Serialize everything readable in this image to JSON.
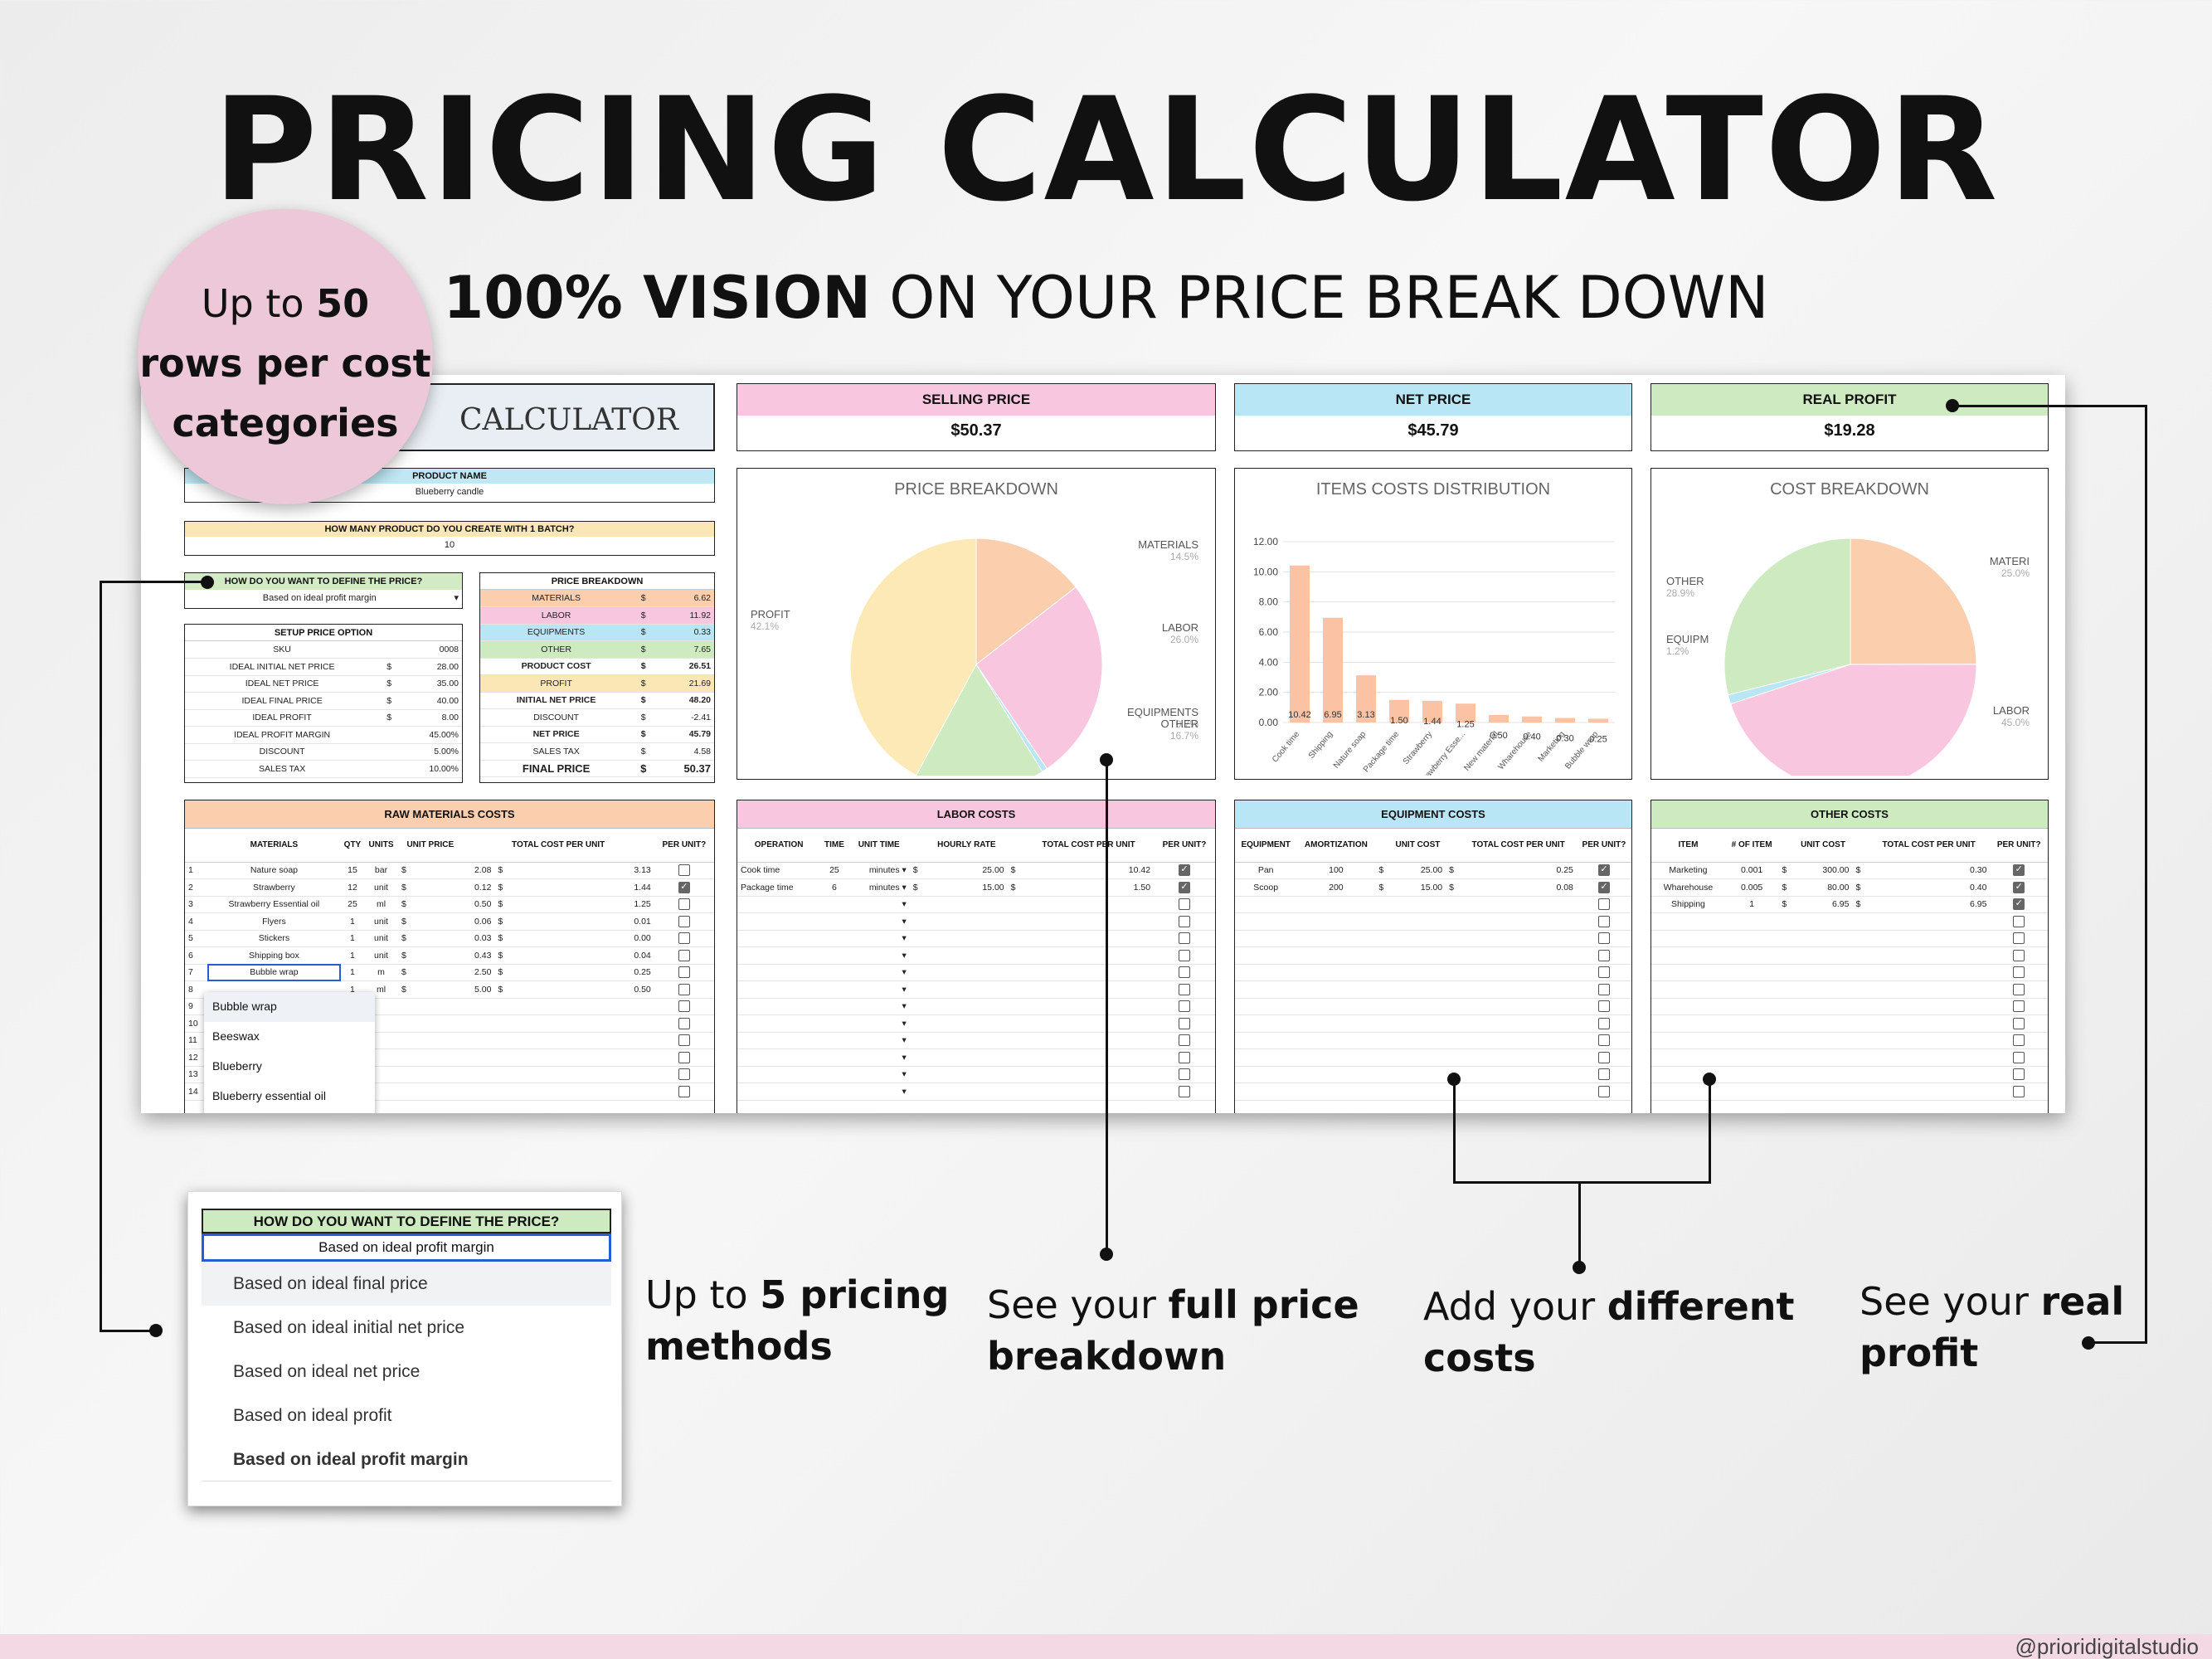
{
  "title": "PRICING CALCULATOR",
  "subtitle": {
    "bold": "100% VISION",
    "rest": "ON YOUR PRICE BREAK DOWN"
  },
  "badge": {
    "l1a": "Up to ",
    "l1b": "50",
    "l2": "rows per cost",
    "l3": "categories"
  },
  "sheet": {
    "calc_title": "CALCULATOR",
    "product_name_label": "PRODUCT NAME",
    "product_name": "Blueberry candle",
    "batch_label": "HOW MANY PRODUCT DO YOU CREATE WITH 1 BATCH?",
    "batch_value": "10",
    "define_label": "HOW DO YOU WANT TO DEFINE THE PRICE?",
    "define_value": "Based on ideal profit margin",
    "setup_label": "SETUP PRICE OPTION",
    "setup_rows": [
      [
        "SKU",
        "",
        "0008"
      ],
      [
        "IDEAL INITIAL NET PRICE",
        "$",
        "28.00"
      ],
      [
        "IDEAL NET PRICE",
        "$",
        "35.00"
      ],
      [
        "IDEAL FINAL PRICE",
        "$",
        "40.00"
      ],
      [
        "IDEAL PROFIT",
        "$",
        "8.00"
      ],
      [
        "IDEAL PROFIT MARGIN",
        "",
        "45.00%"
      ],
      [
        "DISCOUNT",
        "",
        "5.00%"
      ],
      [
        "SALES TAX",
        "",
        "10.00%"
      ]
    ],
    "breakdown_label": "PRICE BREAKDOWN",
    "breakdown_rows": [
      [
        "MATERIALS",
        "$",
        "6.62"
      ],
      [
        "LABOR",
        "$",
        "11.92"
      ],
      [
        "EQUIPMENTS",
        "$",
        "0.33"
      ],
      [
        "OTHER",
        "$",
        "7.65"
      ],
      [
        "PRODUCT COST",
        "$",
        "26.51"
      ],
      [
        "PROFIT",
        "$",
        "21.69"
      ],
      [
        "INITIAL NET PRICE",
        "$",
        "48.20"
      ],
      [
        "DISCOUNT",
        "$",
        "-2.41"
      ],
      [
        "NET PRICE",
        "$",
        "45.79"
      ],
      [
        "SALES TAX",
        "$",
        "4.58"
      ],
      [
        "FINAL PRICE",
        "$",
        "50.37"
      ]
    ],
    "kpis": [
      {
        "label": "SELLING PRICE",
        "value": "$50.37",
        "color": "#f9c6e0"
      },
      {
        "label": "NET PRICE",
        "value": "$45.79",
        "color": "#b9e6f4"
      },
      {
        "label": "REAL PROFIT",
        "value": "$19.28",
        "color": "#cdeac0"
      }
    ],
    "charts": {
      "pie1": {
        "title": "PRICE BREAKDOWN",
        "labels": [
          "MATERIALS",
          "LABOR",
          "EQUIPMENTS",
          "OTHER",
          "PROFIT"
        ],
        "pcts": [
          "14.5%",
          "26.0%",
          "0.7%",
          "16.7%",
          "42.1%"
        ]
      },
      "bar": {
        "title": "ITEMS COSTS DISTRIBUTION",
        "yticks": [
          "12.00",
          "10.00",
          "8.00",
          "6.00",
          "4.00",
          "2.00",
          "0.00"
        ],
        "labels": [
          "10.42",
          "6.95",
          "3.13",
          "1.50",
          "1.44",
          "1.25",
          "0.50",
          "0.40",
          "0.30",
          "0.25"
        ],
        "cats": [
          "Cook time",
          "Shipping",
          "Nature soap",
          "Package time",
          "Strawberry",
          "Strawberry Esse...",
          "New material",
          "Wharehouse",
          "Marketing",
          "Bubble wrap"
        ]
      },
      "pie2": {
        "title": "COST BREAKDOWN",
        "labels": [
          "MATERI",
          "LABOR",
          "EQUIPM",
          "OTHER"
        ],
        "pcts": [
          "25.0%",
          "45.0%",
          "1.2%",
          "28.9%"
        ]
      }
    },
    "raw": {
      "title": "RAW MATERIALS COSTS",
      "cols": [
        "MATERIALS",
        "QTY",
        "UNITS",
        "UNIT PRICE",
        "TOTAL COST PER UNIT",
        "PER UNIT?"
      ],
      "rows": [
        [
          "1",
          "Nature soap",
          "15",
          "bar",
          "$",
          "2.08",
          "$",
          "3.13"
        ],
        [
          "2",
          "Strawberry",
          "12",
          "unit",
          "$",
          "0.12",
          "$",
          "1.44"
        ],
        [
          "3",
          "Strawberry Essential oil",
          "25",
          "ml",
          "$",
          "0.50",
          "$",
          "1.25"
        ],
        [
          "4",
          "Flyers",
          "1",
          "unit",
          "$",
          "0.06",
          "$",
          "0.01"
        ],
        [
          "5",
          "Stickers",
          "1",
          "unit",
          "$",
          "0.03",
          "$",
          "0.00"
        ],
        [
          "6",
          "Shipping box",
          "1",
          "unit",
          "$",
          "0.43",
          "$",
          "0.04"
        ],
        [
          "7",
          "Bubble wrap",
          "1",
          "m",
          "$",
          "2.50",
          "$",
          "0.25"
        ],
        [
          "8",
          "",
          "1",
          "ml",
          "$",
          "5.00",
          "$",
          "0.50"
        ],
        [
          "9",
          "",
          "",
          "",
          "",
          "",
          "",
          ""
        ],
        [
          "10",
          "",
          "",
          "",
          "",
          "",
          "",
          ""
        ],
        [
          "11",
          "",
          "",
          "",
          "",
          "",
          "",
          ""
        ],
        [
          "12",
          "",
          "",
          "",
          "",
          "",
          "",
          ""
        ],
        [
          "13",
          "",
          "",
          "",
          "",
          "",
          "",
          ""
        ],
        [
          "14",
          "",
          "",
          "",
          "",
          "",
          "",
          ""
        ]
      ],
      "dropdown": [
        "Bubble wrap",
        "Beeswax",
        "Blueberry",
        "Blueberry essential oil"
      ]
    },
    "labor": {
      "title": "LABOR COSTS",
      "cols": [
        "OPERATION",
        "TIME",
        "UNIT TIME",
        "HOURLY RATE",
        "TOTAL COST PER UNIT",
        "PER UNIT?"
      ],
      "rows": [
        [
          "Cook time",
          "25",
          "minutes",
          "$",
          "25.00",
          "$",
          "10.42"
        ],
        [
          "Package time",
          "6",
          "minutes",
          "$",
          "15.00",
          "$",
          "1.50"
        ]
      ]
    },
    "equip": {
      "title": "EQUIPMENT COSTS",
      "cols": [
        "EQUIPMENT",
        "AMORTIZATION",
        "UNIT COST",
        "TOTAL COST PER UNIT",
        "PER UNIT?"
      ],
      "rows": [
        [
          "Pan",
          "100",
          "$",
          "25.00",
          "$",
          "0.25"
        ],
        [
          "Scoop",
          "200",
          "$",
          "15.00",
          "$",
          "0.08"
        ]
      ]
    },
    "other": {
      "title": "OTHER COSTS",
      "cols": [
        "ITEM",
        "# OF ITEM",
        "UNIT COST",
        "TOTAL COST PER UNIT",
        "PER UNIT?"
      ],
      "rows": [
        [
          "Marketing",
          "0.001",
          "$",
          "300.00",
          "$",
          "0.30"
        ],
        [
          "Wharehouse",
          "0.005",
          "$",
          "80.00",
          "$",
          "0.40"
        ],
        [
          "Shipping",
          "1",
          "$",
          "6.95",
          "$",
          "6.95"
        ]
      ]
    }
  },
  "popup": {
    "label": "HOW DO YOU WANT TO DEFINE THE PRICE?",
    "value": "Based on ideal profit margin",
    "options": [
      "Based on ideal final price",
      "Based on ideal initial net price",
      "Based on ideal net price",
      "Based on ideal profit",
      "Based on ideal profit margin"
    ]
  },
  "callouts": {
    "c1a": "Up to ",
    "c1b": "5 pricing",
    "c1c": "methods",
    "c2a": "See your ",
    "c2b": "full price",
    "c2c": "breakdown",
    "c3a": "Add your ",
    "c3b": "different",
    "c3c": "costs",
    "c4a": "See your ",
    "c4b": "real",
    "c4c": "profit"
  },
  "footer": "@prioridigitalstudio"
}
